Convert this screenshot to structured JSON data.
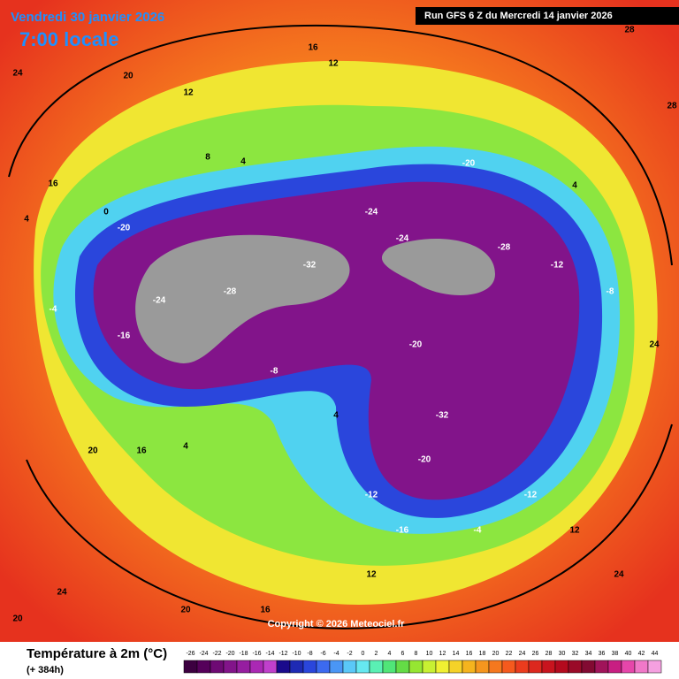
{
  "header": {
    "date": "Vendredi 30 janvier 2026",
    "time": "7:00 locale",
    "run": "Run GFS 6 Z du Mercredi 14 janvier 2026"
  },
  "footer": {
    "title": "Température à 2m (°C)",
    "lead": "(+ 384h)",
    "copyright": "Copyright © 2026 Meteociel.fr"
  },
  "legend": {
    "ticks": [
      -26,
      -24,
      -22,
      -20,
      -18,
      -16,
      -14,
      -12,
      -10,
      -8,
      -6,
      -4,
      -2,
      0,
      2,
      4,
      6,
      8,
      10,
      12,
      14,
      16,
      18,
      20,
      22,
      24,
      26,
      28,
      30,
      32,
      34,
      36,
      38,
      40,
      42,
      44
    ],
    "colors": [
      "#3c0040",
      "#55005a",
      "#6e0a74",
      "#82148a",
      "#961ea0",
      "#aa28b4",
      "#c040cc",
      "#1a0a8c",
      "#1e2ab4",
      "#2a46dc",
      "#3c6af0",
      "#4a96f5",
      "#5ac8f8",
      "#66e8f0",
      "#5af0b4",
      "#50e678",
      "#64dc46",
      "#96e632",
      "#c8f032",
      "#f0f032",
      "#f5d228",
      "#f5b41e",
      "#f5961e",
      "#f5781e",
      "#f55a1e",
      "#eb3c1e",
      "#dc281e",
      "#c8141e",
      "#b40a1e",
      "#9a0a28",
      "#820a32",
      "#a0145a",
      "#c81e82",
      "#e646aa",
      "#f078c8",
      "#f5a0e0"
    ]
  },
  "map": {
    "labels": [
      24,
      20,
      12,
      16,
      12,
      4,
      8,
      16,
      -20,
      -24,
      -28,
      -32,
      -24,
      -20,
      -28,
      -12,
      -8,
      24,
      28,
      28,
      4,
      -20,
      -32,
      -20,
      -12,
      -16,
      -4,
      -12,
      12,
      24,
      12,
      16,
      20,
      24,
      20,
      16,
      4,
      -8,
      4,
      -16,
      -4,
      4,
      20,
      0,
      -24
    ]
  }
}
